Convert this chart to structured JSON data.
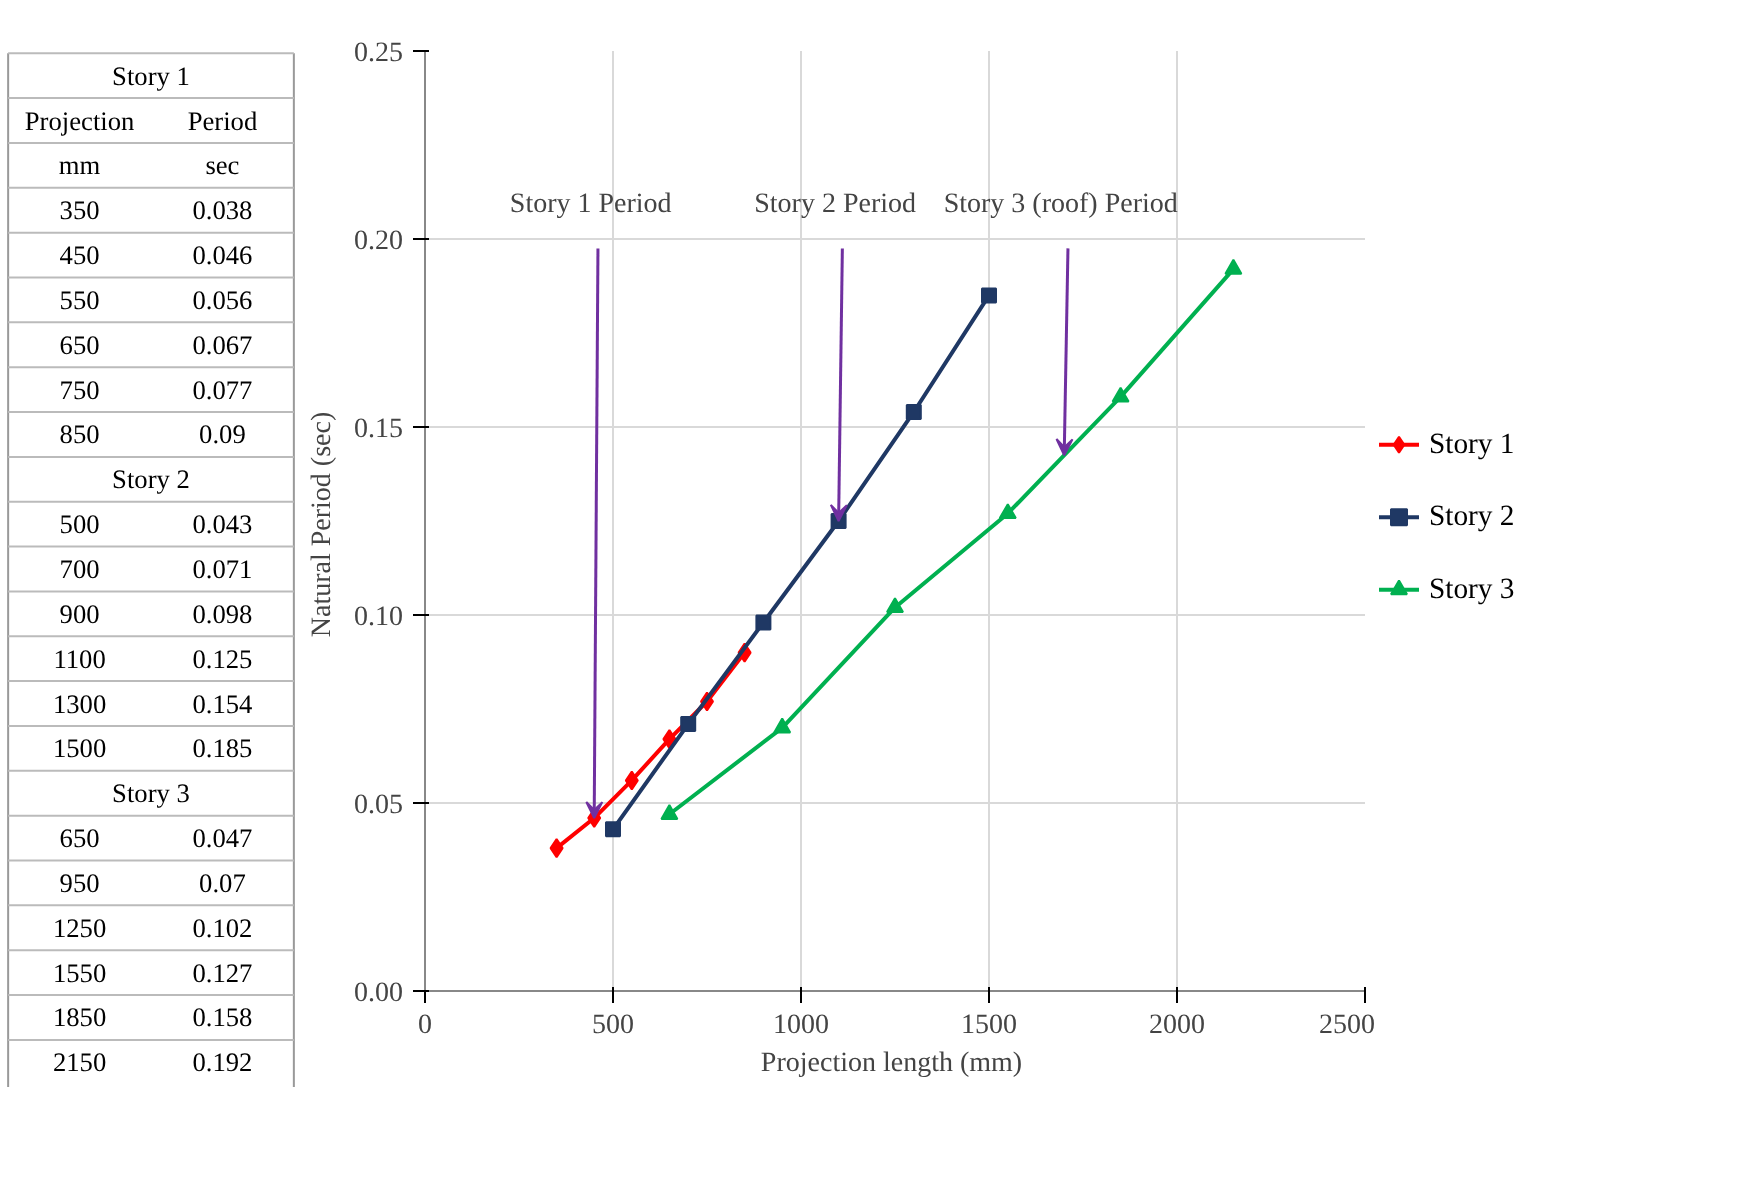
{
  "chart_data": [
    {
      "type": "other",
      "annotations": [
        "Story 1",
        "Projection\tPeriod",
        "mm\tsec",
        "350\t0.038",
        "450\t0.046",
        "550\t0.056",
        "650\t0.067",
        "750\t0.077",
        "850\t0.09",
        "Story 2",
        "500\t0.043",
        "700\t0.071",
        "900\t0.098",
        "1100\t0.125",
        "1300\t0.154",
        "1500\t0.185",
        "Story 3",
        "650\t0.047",
        "950\t0.07",
        "1250\t0.102",
        "1550\t0.127",
        "1850\t0.158",
        "2150\t0.192"
      ]
    },
    {
      "type": "line",
      "xlabel": "Projection length  (mm)",
      "ylabel": "Natural Period  (sec)",
      "xlim": [
        0,
        2500
      ],
      "xticks": [
        0,
        500,
        1000,
        1500,
        2000,
        2500
      ],
      "ylim": [
        0,
        0.25
      ],
      "yticks": [
        {
          "value": 0,
          "label": "0.00"
        },
        0.05,
        {
          "value": 0.1,
          "label": "0.10"
        },
        0.15,
        {
          "value": 0.2,
          "label": "0.20"
        },
        0.25
      ],
      "grid": true,
      "legend": "right",
      "series": [
        {
          "name": "Story 1",
          "color": "#ff0000",
          "marker": "diamond",
          "x": [
            350,
            450,
            550,
            650,
            750,
            850
          ],
          "values": [
            0.038,
            0.046,
            0.056,
            0.067,
            0.077,
            0.09
          ]
        },
        {
          "name": "Story 2",
          "color": "#1f3864",
          "marker": "square",
          "x": [
            500,
            700,
            900,
            1100,
            1300,
            1500
          ],
          "values": [
            0.043,
            0.071,
            0.098,
            0.125,
            0.154,
            0.185
          ]
        },
        {
          "name": "Story 3",
          "color": "#00b050",
          "marker": "triangle",
          "x": [
            650,
            950,
            1250,
            1550,
            1850,
            2150
          ],
          "values": [
            0.047,
            0.07,
            0.102,
            0.127,
            0.158,
            0.192
          ]
        }
      ],
      "annotations": [
        {
          "text": "Story 1  Period",
          "x": 450,
          "y": 0.046
        },
        {
          "text": "Story 2  Period",
          "x": 1100,
          "y": 0.125
        },
        {
          "text": "Story 3 (roof)  Period",
          "x": 1700,
          "y": 0.1425
        }
      ]
    }
  ]
}
